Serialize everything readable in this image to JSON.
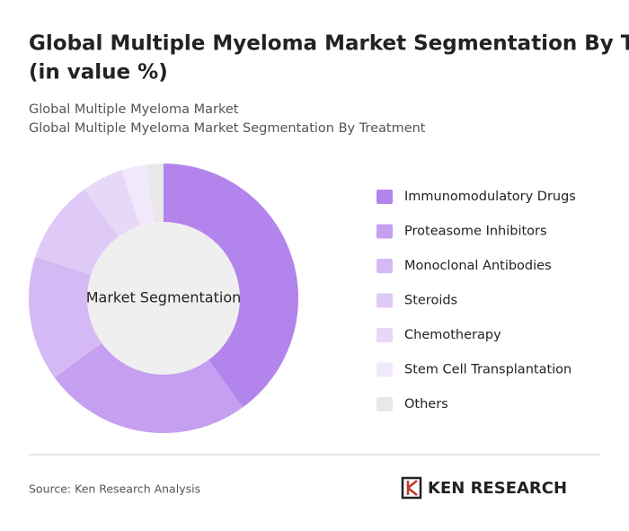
{
  "chart_data": {
    "type": "donut",
    "title": "Global Multiple Myeloma Market Segmentation By Treatment (in value %)",
    "subtitle_lines": [
      "Global Multiple Myeloma Market",
      "Global Multiple Myeloma Market Segmentation By Treatment"
    ],
    "center_label": "Market Segmentation",
    "categories": [
      "Immunomodulatory Drugs",
      "Proteasome Inhibitors",
      "Monoclonal Antibodies",
      "Steroids",
      "Chemotherapy",
      "Stem Cell Transplantation",
      "Others"
    ],
    "values": [
      40,
      25,
      15,
      10,
      5,
      3,
      2
    ],
    "colors": [
      "#b284ec",
      "#c59ff0",
      "#d5b9f4",
      "#dfc9f6",
      "#e8d8f8",
      "#f1e9fb",
      "#e8e8e8"
    ],
    "legend": "right",
    "source": "Source: Ken Research Analysis",
    "logo": "KEN RESEARCH"
  }
}
